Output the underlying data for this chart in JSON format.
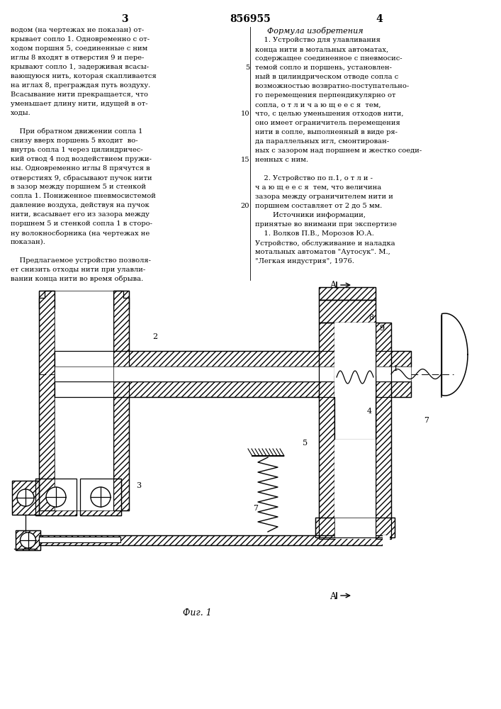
{
  "page_number_left": "3",
  "page_number_center": "856955",
  "page_number_right": "4",
  "left_col_lines": [
    "водом (на чертежах не показан) от-",
    "крывает сопло 1. Одновременно с от-",
    "ходом поршня 5, соединенные с ним",
    "иглы 8 входят в отверстия 9 и пере-",
    "крывают сопло 1, задерживая всасы-",
    "вающуюся нить, которая скапливается",
    "на иглах 8, преграждая путь воздуху.",
    "Всасывание нити прекращается, что",
    "уменьшает длину нити, идущей в от-",
    "ходы.",
    "",
    "    При обратном движении сопла 1",
    "снизу вверх поршень 5 входит  во-",
    "внутрь сопла 1 через цилиндричес-",
    "кий отвод 4 под воздействием пружи-",
    "ны. Одновременно иглы 8 прячутся в",
    "отверстиях 9, сбрасывают пучок нити",
    "в зазор между поршнем 5 и стенкой",
    "сопла 1. Пониженное пневмосистемой",
    "давление воздуха, действуя на пучок",
    "нити, всасывает его из зазора между",
    "поршнем 5 и стенкой сопла 1 в сторо-",
    "ну волокносборника (на чертежах не",
    "показан).",
    "",
    "    Предлагаемое устройство позволя-",
    "ет снизить отходы нити при улавли-",
    "вании конца нити во время обрыва."
  ],
  "right_col_header": "Формула изобретения",
  "right_col_lines": [
    "    1. Устройство для улавливания",
    "конца нити в мотальных автоматах,",
    "содержащее соединенное с пневмосис-",
    "темой сопло и поршень, установлен-",
    "ный в цилиндрическом отводе сопла с",
    "возможностью возвратно-поступательно-",
    "го перемещения перпендикулярно от",
    "сопла, о т л и ч а ю щ е е с я  тем,",
    "что, с целью уменьшения отходов нити,",
    "оно имеет ограничитель перемещения",
    "нити в сопле, выполненный в виде ря-",
    "да параллельных игл, смонтирован-",
    "ных с зазором над поршнем и жестко соеди-",
    "ненных с ним.",
    "",
    "    2. Устройство по п.1, о т л и -",
    "ч а ю щ е е с я  тем, что величина",
    "зазора между ограничителем нити и",
    "поршнем составляет от 2 до 5 мм.",
    "        Источники информации,",
    "принятые во внимани при экспертизе",
    "    1. Волков П.В., Морозов Ю.А.",
    "Устройство, обслуживание и наладка",
    "мотальных автоматов \"Аутосук\". М.,",
    "\"Легкая индустрия\", 1976."
  ],
  "line_numbers": {
    "3": "5",
    "8": "10",
    "13": "15",
    "18": "20"
  },
  "fig_label": "Фиг. 1",
  "bg_color": "#ffffff"
}
